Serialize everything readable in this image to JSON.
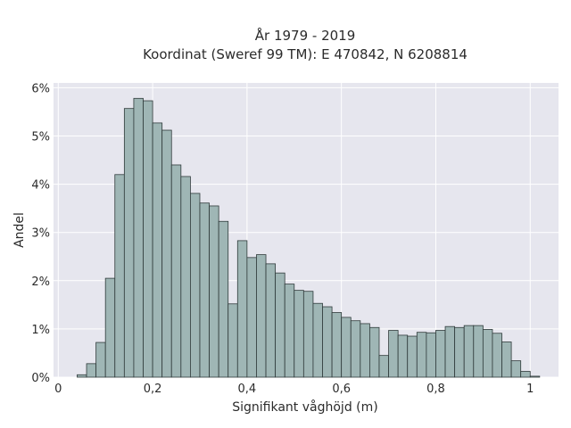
{
  "chart_data": {
    "type": "bar",
    "title": "År 1979 - 2019",
    "subtitle": "Koordinat (Sweref 99 TM): E 470842, N 6208814",
    "xlabel": "Signifikant våghöjd (m)",
    "ylabel": "Andel",
    "xlim": [
      -0.01,
      1.06
    ],
    "ylim": [
      0,
      6.1
    ],
    "bin_width": 0.02,
    "bin_starts": [
      0.04,
      0.06,
      0.08,
      0.1,
      0.12,
      0.14,
      0.16,
      0.18,
      0.2,
      0.22,
      0.24,
      0.26,
      0.28,
      0.3,
      0.32,
      0.34,
      0.36,
      0.38,
      0.4,
      0.42,
      0.44,
      0.46,
      0.48,
      0.5,
      0.52,
      0.54,
      0.56,
      0.58,
      0.6,
      0.62,
      0.64,
      0.66,
      0.68,
      0.7,
      0.72,
      0.74,
      0.76,
      0.78,
      0.8,
      0.82,
      0.84,
      0.86,
      0.88,
      0.9,
      0.92,
      0.94,
      0.96,
      0.98,
      1.0
    ],
    "values": [
      0.05,
      0.28,
      0.72,
      2.05,
      4.2,
      5.57,
      5.78,
      5.73,
      5.27,
      5.12,
      4.4,
      4.16,
      3.81,
      3.61,
      3.55,
      3.23,
      1.52,
      2.83,
      2.48,
      2.54,
      2.35,
      2.16,
      1.93,
      1.8,
      1.78,
      1.53,
      1.46,
      1.34,
      1.24,
      1.17,
      1.11,
      1.03,
      0.45,
      0.97,
      0.87,
      0.85,
      0.93,
      0.92,
      0.97,
      1.05,
      1.03,
      1.07,
      1.07,
      0.99,
      0.91,
      0.73,
      0.34,
      0.12,
      0.02
    ],
    "x_ticks": [
      0,
      0.2,
      0.4,
      0.6,
      0.8,
      1
    ],
    "x_tick_labels": [
      "0",
      "0,2",
      "0,4",
      "0,6",
      "0,8",
      "1"
    ],
    "y_ticks": [
      0,
      1,
      2,
      3,
      4,
      5,
      6
    ],
    "y_tick_labels": [
      "0%",
      "1%",
      "2%",
      "3%",
      "4%",
      "5%",
      "6%"
    ],
    "grid": true,
    "bar_color": "#9fb6b5",
    "bar_edge_color": "#2f3a3a",
    "background_color": "#e6e6ee",
    "grid_color": "#ffffff"
  }
}
